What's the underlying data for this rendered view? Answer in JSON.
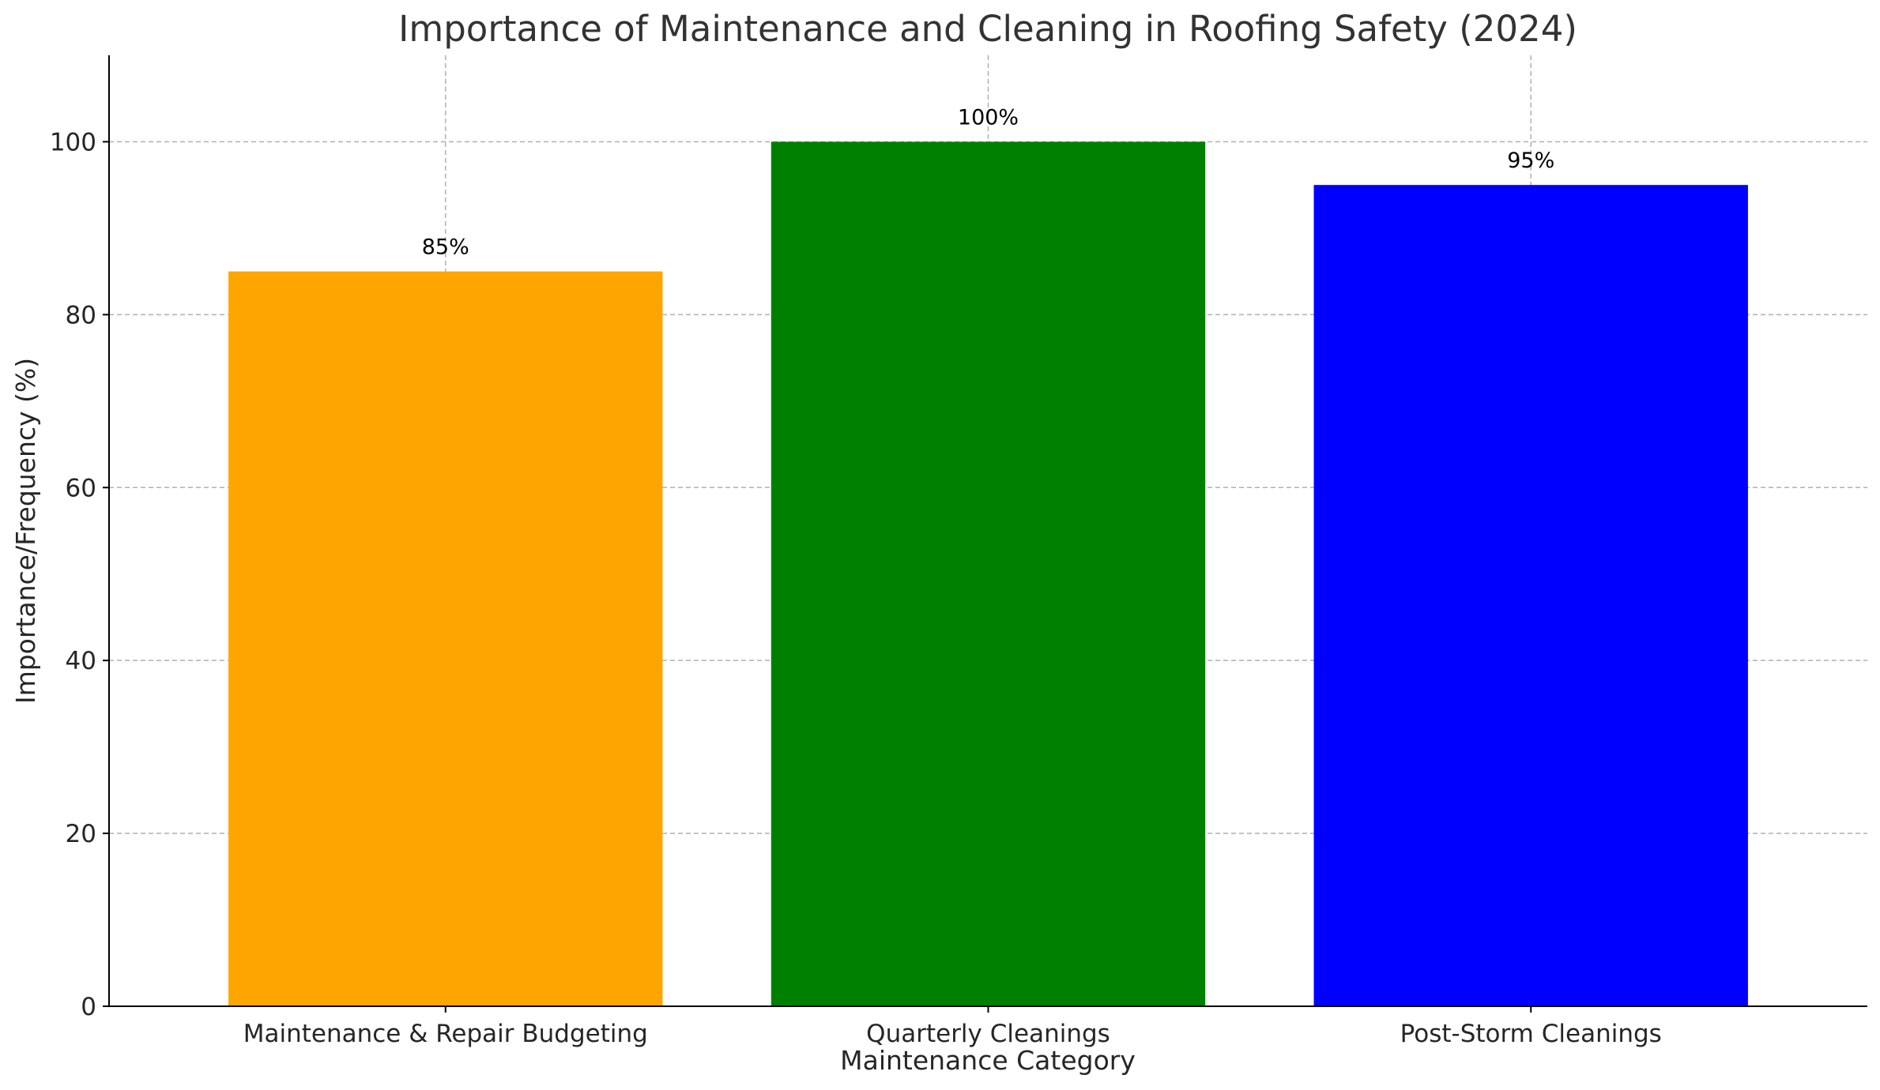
{
  "chart_data": {
    "type": "bar",
    "title": "Importance of Maintenance and Cleaning in Roofing Safety (2024)",
    "xlabel": "Maintenance Category",
    "ylabel": "Importance/Frequency (%)",
    "categories": [
      "Maintenance & Repair Budgeting",
      "Quarterly Cleanings",
      "Post-Storm Cleanings"
    ],
    "values": [
      85,
      100,
      95
    ],
    "data_labels": [
      "85%",
      "100%",
      "95%"
    ],
    "colors": [
      "#FFA500",
      "#008000",
      "#0000FF"
    ],
    "ylim": [
      0,
      110
    ],
    "yticks": [
      0,
      20,
      40,
      60,
      80,
      100
    ],
    "grid": true
  }
}
